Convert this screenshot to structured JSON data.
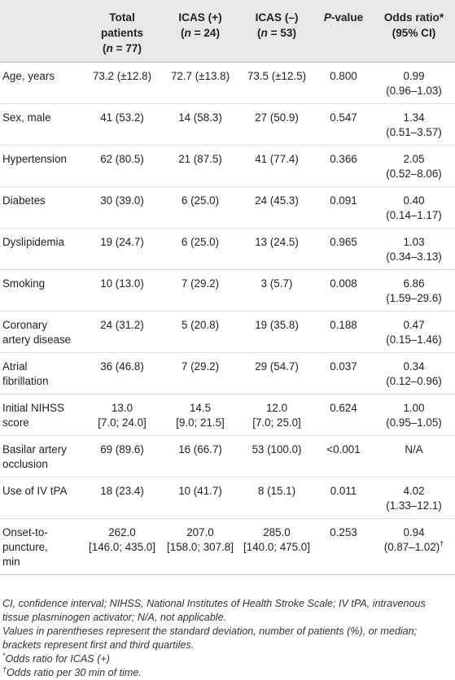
{
  "header": {
    "col0": "",
    "col1": [
      "Total",
      "patients",
      "(n = 77)"
    ],
    "col2": [
      "ICAS (+)",
      "(n = 24)"
    ],
    "col3": [
      "ICAS (–)",
      "(n = 53)"
    ],
    "col4": "P-value",
    "col5": [
      "Odds ratio*",
      "(95% CI)"
    ]
  },
  "rows": [
    {
      "label": [
        "Age, years"
      ],
      "total": [
        "73.2 (±12.8)"
      ],
      "pos": [
        "72.7 (±13.8)"
      ],
      "neg": [
        "73.5 (±12.5)"
      ],
      "p": "0.800",
      "or": [
        "0.99",
        "(0.96–1.03)"
      ]
    },
    {
      "label": [
        "Sex, male"
      ],
      "total": [
        "41 (53.2)"
      ],
      "pos": [
        "14 (58.3)"
      ],
      "neg": [
        "27 (50.9)"
      ],
      "p": "0.547",
      "or": [
        "1.34",
        "(0.51–3.57)"
      ]
    },
    {
      "label": [
        "Hypertension"
      ],
      "total": [
        "62 (80.5)"
      ],
      "pos": [
        "21 (87.5)"
      ],
      "neg": [
        "41 (77.4)"
      ],
      "p": "0.366",
      "or": [
        "2.05",
        "(0.52–8.06)"
      ]
    },
    {
      "label": [
        "Diabetes"
      ],
      "total": [
        "30 (39.0)"
      ],
      "pos": [
        "6 (25.0)"
      ],
      "neg": [
        "24 (45.3)"
      ],
      "p": "0.091",
      "or": [
        "0.40",
        "(0.14–1.17)"
      ]
    },
    {
      "label": [
        "Dyslipidemia"
      ],
      "total": [
        "19 (24.7)"
      ],
      "pos": [
        "6 (25.0)"
      ],
      "neg": [
        "13 (24.5)"
      ],
      "p": "0.965",
      "or": [
        "1.03",
        "(0.34–3.13)"
      ]
    },
    {
      "label": [
        "Smoking"
      ],
      "total": [
        "10 (13.0)"
      ],
      "pos": [
        "7 (29.2)"
      ],
      "neg": [
        "3 (5.7)"
      ],
      "p": "0.008",
      "or": [
        "6.86",
        "(1.59–29.6)"
      ]
    },
    {
      "label": [
        "Coronary",
        "artery disease"
      ],
      "total": [
        "24 (31.2)"
      ],
      "pos": [
        "5 (20.8)"
      ],
      "neg": [
        "19 (35.8)"
      ],
      "p": "0.188",
      "or": [
        "0.47",
        "(0.15–1.46)"
      ]
    },
    {
      "label": [
        "Atrial",
        "fibrillation"
      ],
      "total": [
        "36 (46.8)"
      ],
      "pos": [
        "7 (29.2)"
      ],
      "neg": [
        "29 (54.7)"
      ],
      "p": "0.037",
      "or": [
        "0.34",
        "(0.12–0.96)"
      ]
    },
    {
      "label": [
        "Initial NIHSS",
        "score"
      ],
      "total": [
        "13.0",
        "[7.0; 24.0]"
      ],
      "pos": [
        "14.5",
        "[9.0; 21.5]"
      ],
      "neg": [
        "12.0",
        "[7.0; 25.0]"
      ],
      "p": "0.624",
      "or": [
        "1.00",
        "(0.95–1.05)"
      ]
    },
    {
      "label": [
        "Basilar artery",
        "occlusion"
      ],
      "total": [
        "69 (89.6)"
      ],
      "pos": [
        "16 (66.7)"
      ],
      "neg": [
        "53 (100.0)"
      ],
      "p": "<0.001",
      "or": [
        "N/A"
      ]
    },
    {
      "label": [
        "Use of IV tPA"
      ],
      "total": [
        "18 (23.4)"
      ],
      "pos": [
        "10 (41.7)"
      ],
      "neg": [
        "8 (15.1)"
      ],
      "p": "0.011",
      "or": [
        "4.02",
        "(1.33–12.1)"
      ]
    },
    {
      "label": [
        "Onset-to-",
        "puncture,",
        "min"
      ],
      "total": [
        "262.0",
        "[146.0; 435.0]"
      ],
      "pos": [
        "207.0",
        "[158.0; 307.8]"
      ],
      "neg": [
        "285.0",
        "[140.0; 475.0]"
      ],
      "p": "0.253",
      "or": [
        "0.94",
        "(0.87–1.02)†"
      ]
    }
  ],
  "notes": [
    "CI, confidence interval; NIHSS, National Institutes of Health Stroke Scale; IV tPA, intravenous tissue plasminogen activator; N/A, not applicable.",
    "Values in parentheses represent the standard deviation, number of patients (%), or median; brackets represent first and third quartiles.",
    "*Odds ratio for ICAS (+)",
    "†Odds ratio per 30 min of time."
  ]
}
